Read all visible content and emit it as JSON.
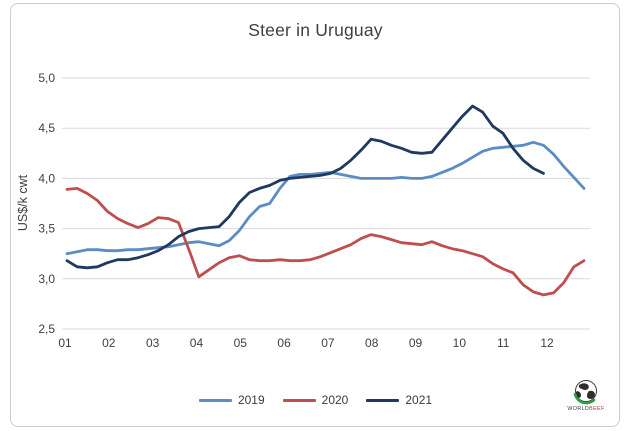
{
  "frame": {
    "border_color": "#cdcdcd",
    "background": "#ffffff"
  },
  "chart_data": {
    "type": "line",
    "title": "Steer in Uruguay",
    "ylabel": "US$/k cwt",
    "xlabel": "",
    "ylim": [
      2.5,
      5.0
    ],
    "grid": true,
    "legend_position": "bottom",
    "x_unit": "weeks (52 per year), month labels shown",
    "categories": [
      "01",
      "02",
      "03",
      "04",
      "05",
      "06",
      "07",
      "08",
      "09",
      "10",
      "11",
      "12"
    ],
    "yticks": [
      {
        "value": 2.5,
        "label": "2,5"
      },
      {
        "value": 3.0,
        "label": "3,0"
      },
      {
        "value": 3.5,
        "label": "3,5"
      },
      {
        "value": 4.0,
        "label": "4,0"
      },
      {
        "value": 4.5,
        "label": "4,5"
      },
      {
        "value": 5.0,
        "label": "5,0"
      }
    ],
    "series": [
      {
        "name": "2019",
        "color": "#5b8cc4",
        "values": [
          3.25,
          3.27,
          3.29,
          3.29,
          3.28,
          3.28,
          3.29,
          3.29,
          3.3,
          3.31,
          3.32,
          3.34,
          3.36,
          3.37,
          3.35,
          3.33,
          3.38,
          3.48,
          3.62,
          3.72,
          3.75,
          3.9,
          4.02,
          4.04,
          4.04,
          4.05,
          4.06,
          4.04,
          4.02,
          4.0,
          4.0,
          4.0,
          4.0,
          4.01,
          4.0,
          4.0,
          4.02,
          4.06,
          4.1,
          4.15,
          4.21,
          4.27,
          4.3,
          4.31,
          4.32,
          4.33,
          4.36,
          4.33,
          4.24,
          4.12,
          4.01,
          3.9
        ]
      },
      {
        "name": "2020",
        "color": "#bf4f4f",
        "values": [
          3.89,
          3.9,
          3.85,
          3.78,
          3.67,
          3.6,
          3.55,
          3.51,
          3.55,
          3.61,
          3.6,
          3.56,
          3.3,
          3.02,
          3.09,
          3.16,
          3.21,
          3.23,
          3.19,
          3.18,
          3.18,
          3.19,
          3.18,
          3.18,
          3.19,
          3.22,
          3.26,
          3.3,
          3.34,
          3.4,
          3.44,
          3.42,
          3.39,
          3.36,
          3.35,
          3.34,
          3.37,
          3.33,
          3.3,
          3.28,
          3.25,
          3.22,
          3.15,
          3.1,
          3.06,
          2.94,
          2.87,
          2.84,
          2.86,
          2.96,
          3.12,
          3.18
        ]
      },
      {
        "name": "2021",
        "color": "#1f3960",
        "values": [
          3.18,
          3.12,
          3.11,
          3.12,
          3.16,
          3.19,
          3.19,
          3.21,
          3.24,
          3.28,
          3.34,
          3.42,
          3.47,
          3.5,
          3.51,
          3.52,
          3.62,
          3.76,
          3.86,
          3.9,
          3.93,
          3.98,
          4.0,
          4.01,
          4.02,
          4.03,
          4.05,
          4.1,
          4.18,
          4.28,
          4.39,
          4.37,
          4.33,
          4.3,
          4.26,
          4.25,
          4.26,
          4.38,
          4.5,
          4.62,
          4.72,
          4.66,
          4.52,
          4.45,
          4.3,
          4.18,
          4.1,
          4.05
        ]
      }
    ]
  },
  "legend": {
    "items": [
      "2019",
      "2020",
      "2021"
    ]
  },
  "logo": {
    "text": "WORLDBEEF",
    "text_dark": "WORLD",
    "text_accent": "BEEF",
    "globe_green": "#2f9e45",
    "accent_red": "#b03a2e"
  }
}
